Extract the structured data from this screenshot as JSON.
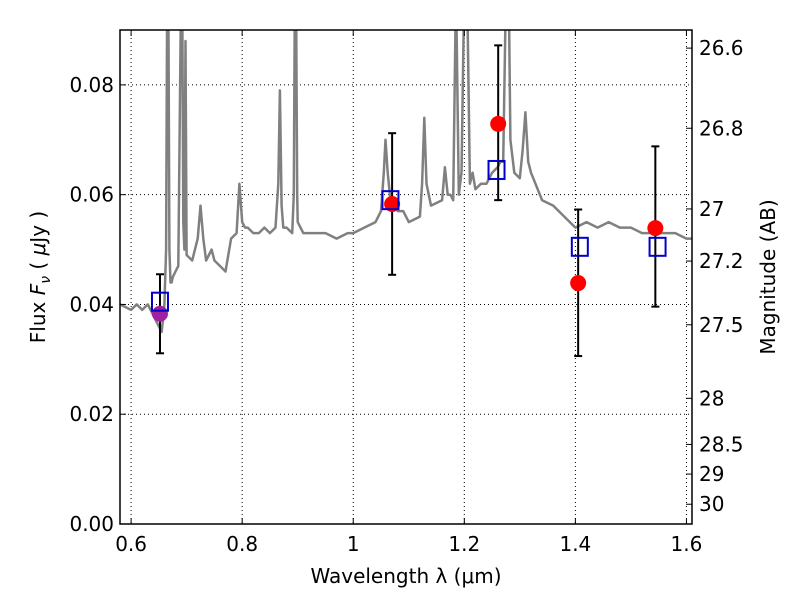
{
  "chart_data": {
    "type": "scatter",
    "xlabel": "Wavelength  λ (μm)",
    "ylabel": "Flux  F_ν  ( μJy )",
    "ylabel_parts": [
      "Flux  ",
      "F",
      "ν",
      "  ( ",
      "μ",
      "Jy )"
    ],
    "y2label": "Magnitude (AB)",
    "xlim": [
      0.58,
      1.61
    ],
    "ylim": [
      0.0,
      0.09
    ],
    "grid": true,
    "x_ticks": [
      0.6,
      0.8,
      1.0,
      1.2,
      1.4,
      1.6
    ],
    "x_tick_labels": [
      "0.6",
      "0.8",
      "1",
      "1.2",
      "1.4",
      "1.6"
    ],
    "y_ticks": [
      0.0,
      0.02,
      0.04,
      0.06,
      0.08
    ],
    "y_tick_labels": [
      "0.00",
      "0.02",
      "0.04",
      "0.06",
      "0.08"
    ],
    "mag_ticks": [
      {
        "flux": 0.0867,
        "label": "26.6"
      },
      {
        "flux": 0.0721,
        "label": "26.8"
      },
      {
        "flux": 0.0574,
        "label": "27"
      },
      {
        "flux": 0.0479,
        "label": "27.2"
      },
      {
        "flux": 0.0363,
        "label": "27.5"
      },
      {
        "flux": 0.0229,
        "label": "28"
      },
      {
        "flux": 0.0145,
        "label": "28.5"
      },
      {
        "flux": 0.0091,
        "label": "29"
      },
      {
        "flux": 0.0036,
        "label": "30"
      }
    ],
    "series": [
      {
        "name": "model_spectrum",
        "style": "line",
        "color": "#808080",
        "x": [
          0.58,
          0.6,
          0.61,
          0.62,
          0.63,
          0.64,
          0.645,
          0.65,
          0.655,
          0.66,
          0.663,
          0.665,
          0.667,
          0.669,
          0.671,
          0.673,
          0.675,
          0.68,
          0.685,
          0.69,
          0.692,
          0.694,
          0.696,
          0.698,
          0.7,
          0.71,
          0.72,
          0.725,
          0.73,
          0.735,
          0.74,
          0.745,
          0.75,
          0.76,
          0.77,
          0.78,
          0.79,
          0.795,
          0.8,
          0.805,
          0.81,
          0.82,
          0.83,
          0.84,
          0.85,
          0.86,
          0.865,
          0.868,
          0.871,
          0.874,
          0.88,
          0.89,
          0.893,
          0.895,
          0.897,
          0.899,
          0.9,
          0.91,
          0.92,
          0.93,
          0.95,
          0.97,
          0.99,
          1.0,
          1.02,
          1.04,
          1.05,
          1.055,
          1.058,
          1.062,
          1.068,
          1.075,
          1.08,
          1.09,
          1.1,
          1.12,
          1.124,
          1.128,
          1.132,
          1.14,
          1.16,
          1.165,
          1.17,
          1.175,
          1.18,
          1.185,
          1.19,
          1.195,
          1.2,
          1.205,
          1.21,
          1.215,
          1.22,
          1.23,
          1.24,
          1.25,
          1.26,
          1.265,
          1.27,
          1.275,
          1.28,
          1.283,
          1.29,
          1.3,
          1.305,
          1.31,
          1.315,
          1.32,
          1.34,
          1.36,
          1.38,
          1.4,
          1.42,
          1.44,
          1.46,
          1.48,
          1.5,
          1.52,
          1.54,
          1.56,
          1.58,
          1.6,
          1.61
        ],
        "y": [
          0.04,
          0.039,
          0.04,
          0.039,
          0.04,
          0.038,
          0.037,
          0.036,
          0.035,
          0.04,
          0.05,
          0.098,
          0.098,
          0.05,
          0.044,
          0.044,
          0.045,
          0.046,
          0.047,
          0.098,
          0.098,
          0.055,
          0.05,
          0.088,
          0.049,
          0.048,
          0.052,
          0.058,
          0.052,
          0.048,
          0.049,
          0.05,
          0.048,
          0.047,
          0.046,
          0.052,
          0.053,
          0.062,
          0.055,
          0.054,
          0.054,
          0.053,
          0.053,
          0.054,
          0.053,
          0.054,
          0.062,
          0.079,
          0.058,
          0.054,
          0.054,
          0.053,
          0.06,
          0.098,
          0.098,
          0.06,
          0.055,
          0.053,
          0.053,
          0.053,
          0.053,
          0.052,
          0.053,
          0.053,
          0.054,
          0.055,
          0.057,
          0.064,
          0.07,
          0.064,
          0.058,
          0.059,
          0.057,
          0.057,
          0.055,
          0.056,
          0.062,
          0.074,
          0.062,
          0.058,
          0.059,
          0.065,
          0.06,
          0.06,
          0.059,
          0.098,
          0.06,
          0.064,
          0.098,
          0.098,
          0.062,
          0.064,
          0.061,
          0.062,
          0.062,
          0.064,
          0.065,
          0.066,
          0.066,
          0.098,
          0.098,
          0.07,
          0.064,
          0.063,
          0.068,
          0.075,
          0.066,
          0.064,
          0.059,
          0.058,
          0.056,
          0.054,
          0.055,
          0.054,
          0.055,
          0.054,
          0.054,
          0.053,
          0.053,
          0.053,
          0.053,
          0.052,
          0.052
        ]
      },
      {
        "name": "model_points",
        "style": "open-square",
        "color": "#0000cc",
        "x": [
          0.652,
          1.067,
          1.258,
          1.408,
          1.548
        ],
        "y": [
          0.0405,
          0.059,
          0.0645,
          0.0505,
          0.0505
        ]
      },
      {
        "name": "observed",
        "style": "filled-circle",
        "color": "#ff0000",
        "x": [
          1.07,
          1.261,
          1.405,
          1.544
        ],
        "y": [
          0.0583,
          0.0729,
          0.0439,
          0.0539
        ],
        "yerr_low": [
          0.0129,
          0.0139,
          0.0133,
          0.0143
        ],
        "yerr_high": [
          0.0129,
          0.0143,
          0.0134,
          0.0149
        ]
      },
      {
        "name": "observed_optical",
        "style": "filled-circle",
        "color": "#a020a0",
        "x": [
          0.652
        ],
        "y": [
          0.0383
        ],
        "yerr_low": [
          0.0072
        ],
        "yerr_high": [
          0.0072
        ]
      }
    ]
  }
}
